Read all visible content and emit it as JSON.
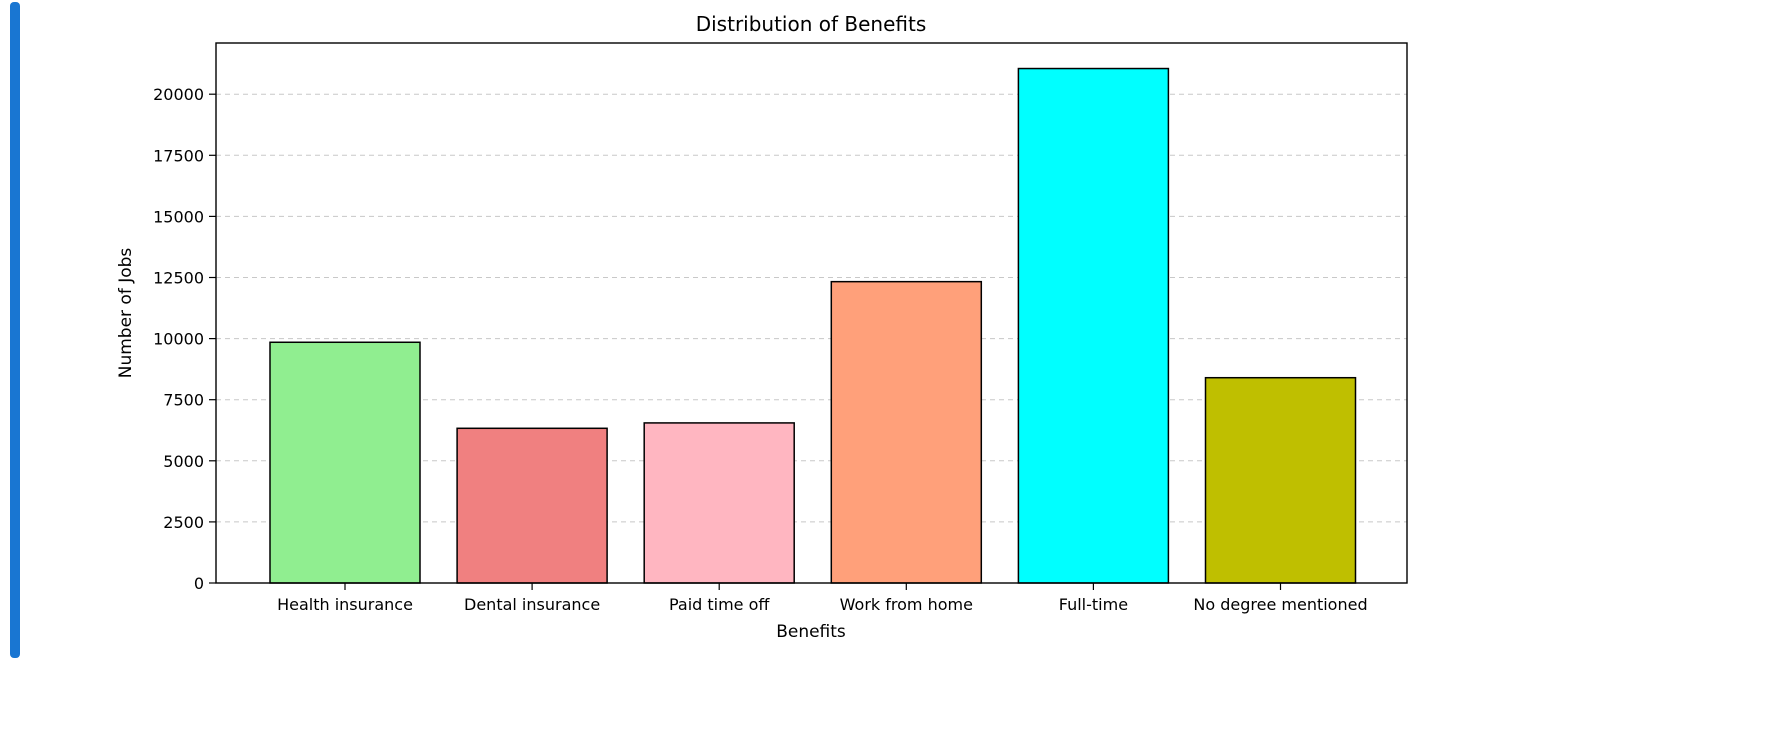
{
  "colors": {
    "accent_bar": "#1976d2"
  },
  "chart_data": {
    "type": "bar",
    "title": "Distribution of Benefits",
    "xlabel": "Benefits",
    "ylabel": "Number of Jobs",
    "categories": [
      "Health insurance",
      "Dental insurance",
      "Paid time off",
      "Work from home",
      "Full-time",
      "No degree mentioned"
    ],
    "values": [
      9850,
      6330,
      6550,
      12330,
      21050,
      8400
    ],
    "colors": [
      "#90ee90",
      "#f08080",
      "#ffb6c1",
      "#ffa07a",
      "#00ffff",
      "#bfbf00"
    ],
    "yticks": [
      0,
      2500,
      5000,
      7500,
      10000,
      12500,
      15000,
      17500,
      20000
    ],
    "ylim": [
      0,
      22100
    ],
    "grid": "y-dashed",
    "legend": "none"
  }
}
